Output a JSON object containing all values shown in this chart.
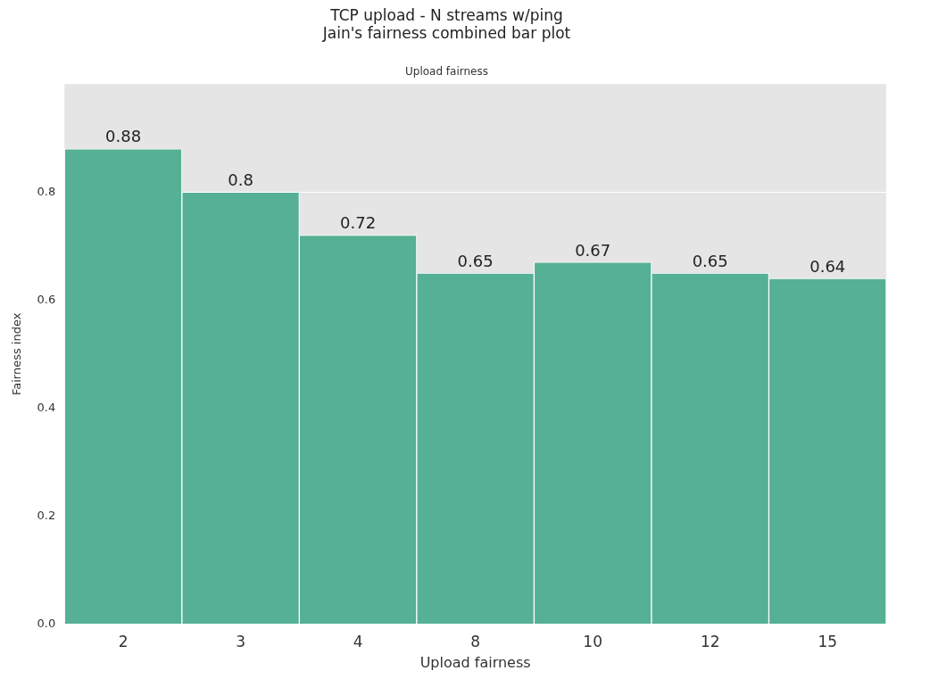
{
  "chart_data": {
    "type": "bar",
    "title": "TCP upload - N streams w/ping\nJain's fairness combined bar plot",
    "subtitle": "Upload fairness",
    "xlabel": "Upload fairness",
    "ylabel": "Fairness index",
    "categories": [
      "2",
      "3",
      "4",
      "8",
      "10",
      "12",
      "15"
    ],
    "values": [
      0.88,
      0.8,
      0.72,
      0.65,
      0.67,
      0.65,
      0.64
    ],
    "color": "#55b094",
    "ylim": [
      0,
      1
    ],
    "yticks": [
      {
        "value": 0,
        "label": "0.0"
      },
      {
        "value": 0.2,
        "label": "0.2"
      },
      {
        "value": 0.4,
        "label": "0.4"
      },
      {
        "value": 0.6,
        "label": "0.6"
      },
      {
        "value": 0.8,
        "label": "0.8"
      }
    ],
    "grid": "y",
    "data_labels": true,
    "legend": false
  }
}
